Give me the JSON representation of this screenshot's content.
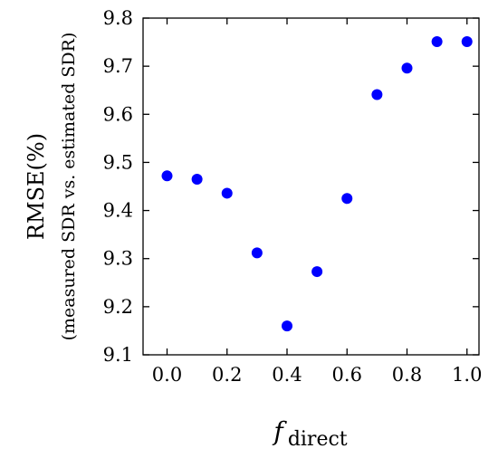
{
  "chart_data": {
    "type": "scatter",
    "title": "",
    "xlabel": {
      "main": "f",
      "sub": "direct"
    },
    "ylabel": {
      "line1": "RMSE(%)",
      "line2": "(measured SDR vs. estimated SDR)"
    },
    "xlim": [
      -0.08,
      1.04
    ],
    "ylim": [
      9.1,
      9.8
    ],
    "x_ticks": [
      0.0,
      0.2,
      0.4,
      0.6,
      0.8,
      1.0
    ],
    "x_tick_labels": [
      "0.0",
      "0.2",
      "0.4",
      "0.6",
      "0.8",
      "1.0"
    ],
    "y_ticks": [
      9.1,
      9.2,
      9.3,
      9.4,
      9.5,
      9.6,
      9.7,
      9.8
    ],
    "y_tick_labels": [
      "9.1",
      "9.2",
      "9.3",
      "9.4",
      "9.5",
      "9.6",
      "9.7",
      "9.8"
    ],
    "grid": false,
    "legend": "none",
    "marker_color": "#0000ff",
    "series": [
      {
        "points": [
          {
            "x": 0.0,
            "y": 9.472
          },
          {
            "x": 0.1,
            "y": 9.465
          },
          {
            "x": 0.2,
            "y": 9.436
          },
          {
            "x": 0.3,
            "y": 9.312
          },
          {
            "x": 0.4,
            "y": 9.16
          },
          {
            "x": 0.5,
            "y": 9.273
          },
          {
            "x": 0.6,
            "y": 9.425
          },
          {
            "x": 0.7,
            "y": 9.641
          },
          {
            "x": 0.8,
            "y": 9.696
          },
          {
            "x": 0.9,
            "y": 9.751
          },
          {
            "x": 1.0,
            "y": 9.751
          }
        ]
      }
    ]
  }
}
